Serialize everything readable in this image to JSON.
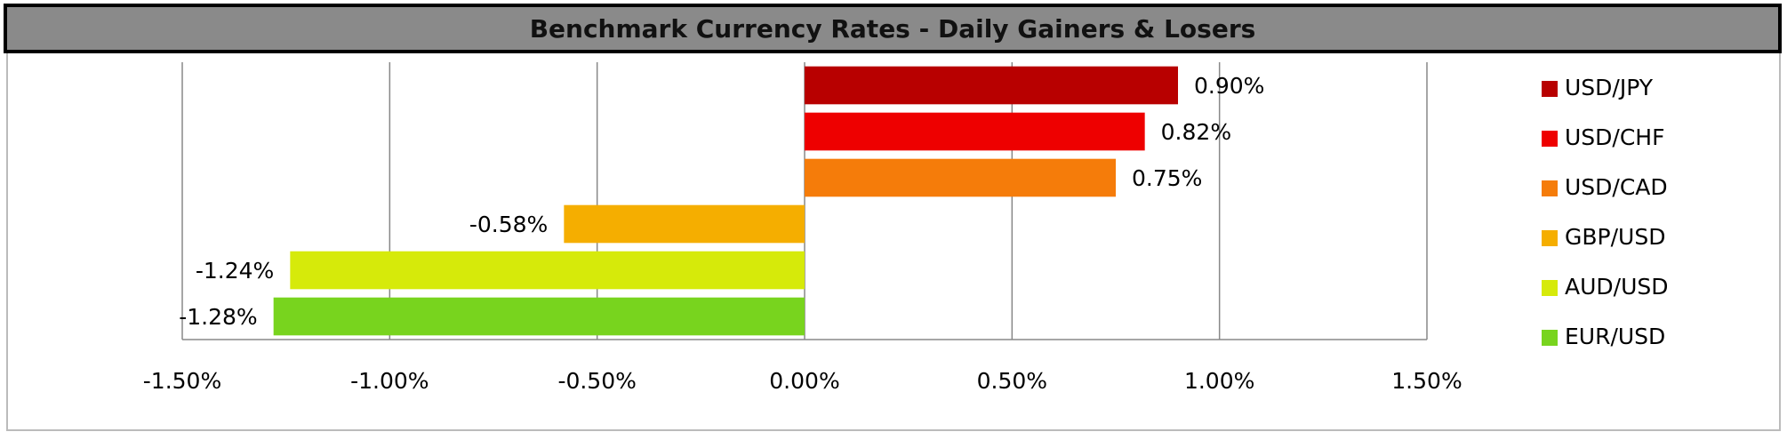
{
  "chart_data": {
    "type": "hbar",
    "title": "Benchmark Currency Rates - Daily Gainers & Losers",
    "series": [
      {
        "name": "USD/JPY",
        "color": "#b80000",
        "values": [
          0.9
        ],
        "value_labels": [
          "0.90%"
        ]
      },
      {
        "name": "USD/CHF",
        "color": "#ee0000",
        "values": [
          0.82
        ],
        "value_labels": [
          "0.82%"
        ]
      },
      {
        "name": "USD/CAD",
        "color": "#f57c0a",
        "values": [
          0.75
        ],
        "value_labels": [
          "0.75%"
        ]
      },
      {
        "name": "GBP/USD",
        "color": "#f5ae00",
        "values": [
          -0.58
        ],
        "value_labels": [
          "-0.58%"
        ]
      },
      {
        "name": "AUD/USD",
        "color": "#d6ea0a",
        "values": [
          -1.24
        ],
        "value_labels": [
          "-1.24%"
        ]
      },
      {
        "name": "EUR/USD",
        "color": "#78d41e",
        "values": [
          -1.28
        ],
        "value_labels": [
          "-1.28%"
        ]
      }
    ],
    "xlim": [
      -1.5,
      1.5
    ],
    "xticks": [
      {
        "value": -1.5,
        "label": "-1.50%"
      },
      {
        "value": -1.0,
        "label": "-1.00%"
      },
      {
        "value": -0.5,
        "label": "-0.50%"
      },
      {
        "value": 0,
        "label": "0.00%"
      },
      {
        "value": 0.5,
        "label": "0.50%"
      },
      {
        "value": 1.0,
        "label": "1.00%"
      },
      {
        "value": 1.5,
        "label": "1.50%"
      }
    ],
    "grid": true,
    "legend": "right"
  }
}
